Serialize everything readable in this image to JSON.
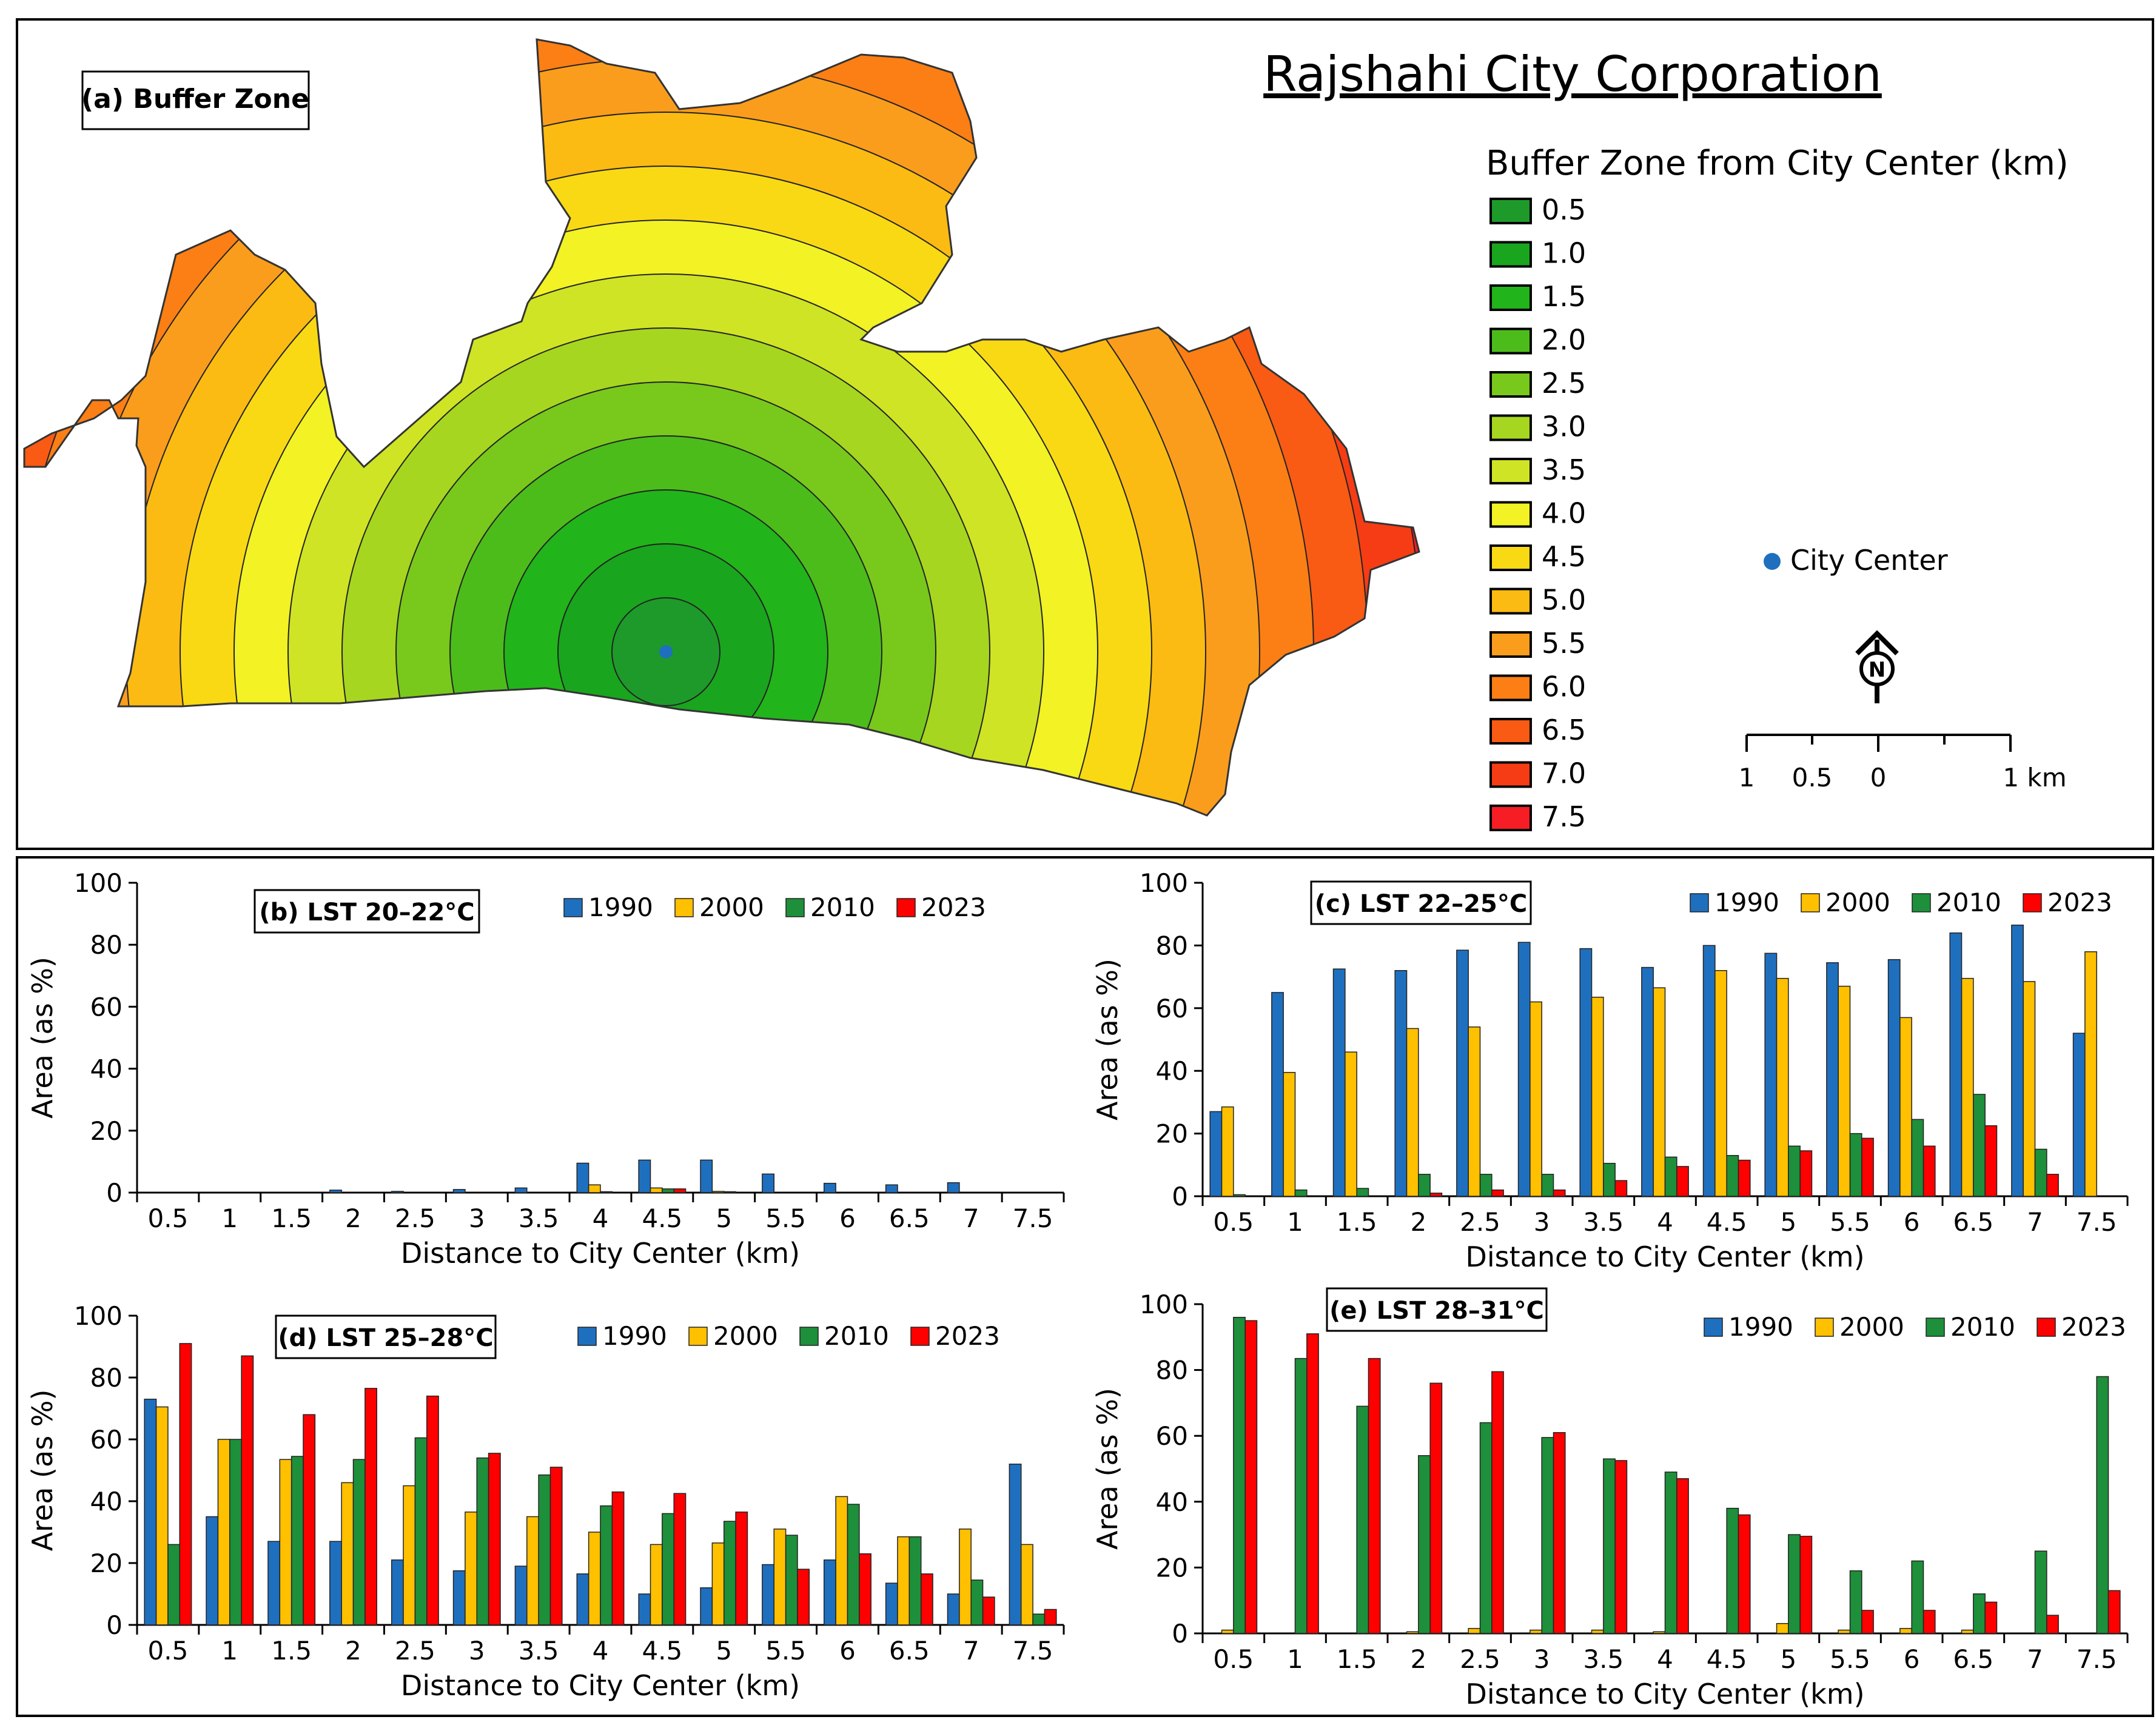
{
  "map_panel": {
    "panel_label": "(a) Buffer Zone",
    "title": "Rajshahi City Corporation",
    "legend_title": "Buffer Zone from City Center (km)",
    "legend_items": [
      {
        "label": "0.5",
        "color": "#1e9a2a"
      },
      {
        "label": "1.0",
        "color": "#19a51e"
      },
      {
        "label": "1.5",
        "color": "#22b41b"
      },
      {
        "label": "2.0",
        "color": "#4cbc1a"
      },
      {
        "label": "2.5",
        "color": "#78c91c"
      },
      {
        "label": "3.0",
        "color": "#a6d61f"
      },
      {
        "label": "3.5",
        "color": "#cfe424"
      },
      {
        "label": "4.0",
        "color": "#f2f224"
      },
      {
        "label": "4.5",
        "color": "#f9d914"
      },
      {
        "label": "5.0",
        "color": "#fbbb12"
      },
      {
        "label": "5.5",
        "color": "#fb9d1c"
      },
      {
        "label": "6.0",
        "color": "#fb7f14"
      },
      {
        "label": "6.5",
        "color": "#f95a14"
      },
      {
        "label": "7.0",
        "color": "#f63c14"
      },
      {
        "label": "7.5",
        "color": "#f61d24"
      }
    ],
    "city_center_label": "City Center",
    "city_center_color": "#1f6fbf",
    "north_label": "N",
    "scale_labels": [
      "1",
      "0.5",
      "0",
      "1 km"
    ]
  },
  "colors": {
    "1990": "#1f6fbf",
    "2000": "#ffc000",
    "2010": "#1e8f3a",
    "2023": "#ff0000"
  },
  "chart_data": [
    {
      "type": "bar",
      "panel": "b",
      "title": "(b) LST 20–22°C",
      "categories": [
        "0.5",
        "1",
        "1.5",
        "2",
        "2.5",
        "3",
        "3.5",
        "4",
        "4.5",
        "5",
        "5.5",
        "6",
        "6.5",
        "7",
        "7.5"
      ],
      "xlabel": "Distance to City Center (km)",
      "ylabel": "Area (as %)",
      "ylim": [
        0,
        100
      ],
      "yticks": [
        "0",
        "20",
        "40",
        "60",
        "80",
        "100"
      ],
      "legend": "top-right",
      "series": [
        {
          "name": "1990",
          "values": [
            0,
            0,
            0,
            0.8,
            0.4,
            1.0,
            1.5,
            9.5,
            10.5,
            10.5,
            6,
            3,
            2.5,
            3.2,
            0
          ]
        },
        {
          "name": "2000",
          "values": [
            0,
            0,
            0,
            0,
            0,
            0,
            0,
            2.5,
            1.5,
            0.4,
            0,
            0,
            0,
            0,
            0
          ]
        },
        {
          "name": "2010",
          "values": [
            0,
            0,
            0,
            0,
            0,
            0,
            0,
            0.3,
            1.2,
            0.3,
            0,
            0,
            0,
            0,
            0
          ]
        },
        {
          "name": "2023",
          "values": [
            0,
            0,
            0,
            0,
            0,
            0,
            0,
            0,
            1.2,
            0,
            0,
            0,
            0,
            0,
            0
          ]
        }
      ]
    },
    {
      "type": "bar",
      "panel": "c",
      "title": "(c) LST 22–25°C",
      "categories": [
        "0.5",
        "1",
        "1.5",
        "2",
        "2.5",
        "3",
        "3.5",
        "4",
        "4.5",
        "5",
        "5.5",
        "6",
        "6.5",
        "7",
        "7.5"
      ],
      "xlabel": "Distance to City Center (km)",
      "ylabel": "Area (as %)",
      "ylim": [
        0,
        100
      ],
      "yticks": [
        "0",
        "20",
        "40",
        "60",
        "80",
        "100"
      ],
      "legend": "top-right",
      "series": [
        {
          "name": "1990",
          "values": [
            27,
            65,
            72.5,
            72,
            78.5,
            81,
            79,
            73,
            80,
            77.5,
            74.5,
            75.5,
            84,
            86.5,
            52
          ]
        },
        {
          "name": "2000",
          "values": [
            28.5,
            39.5,
            46,
            53.5,
            54,
            62,
            63.5,
            66.5,
            72,
            69.5,
            67,
            57,
            69.5,
            68.5,
            78
          ]
        },
        {
          "name": "2010",
          "values": [
            0.5,
            2,
            2.5,
            7,
            7,
            7,
            10.5,
            12.5,
            13,
            16,
            20,
            24.5,
            32.5,
            15,
            0
          ]
        },
        {
          "name": "2023",
          "values": [
            0,
            0,
            0,
            1,
            2,
            2,
            5,
            9.5,
            11.5,
            14.5,
            18.5,
            16,
            22.5,
            7,
            0
          ]
        }
      ]
    },
    {
      "type": "bar",
      "panel": "d",
      "title": "(d) LST 25–28°C",
      "categories": [
        "0.5",
        "1",
        "1.5",
        "2",
        "2.5",
        "3",
        "3.5",
        "4",
        "4.5",
        "5",
        "5.5",
        "6",
        "6.5",
        "7",
        "7.5"
      ],
      "xlabel": "Distance to City Center (km)",
      "ylabel": "Area (as %)",
      "ylim": [
        0,
        100
      ],
      "yticks": [
        "0",
        "20",
        "40",
        "60",
        "80",
        "100"
      ],
      "legend": "top-right",
      "series": [
        {
          "name": "1990",
          "values": [
            73,
            35,
            27,
            27,
            21,
            17.5,
            19,
            16.5,
            10,
            12,
            19.5,
            21,
            13.5,
            10,
            52
          ]
        },
        {
          "name": "2000",
          "values": [
            70.5,
            60,
            53.5,
            46,
            45,
            36.5,
            35,
            30,
            26,
            26.5,
            31,
            41.5,
            28.5,
            31,
            26
          ]
        },
        {
          "name": "2010",
          "values": [
            26,
            60,
            54.5,
            53.5,
            60.5,
            54,
            48.5,
            38.5,
            36,
            33.5,
            29,
            39,
            28.5,
            14.5,
            3.5
          ]
        },
        {
          "name": "2023",
          "values": [
            91,
            87,
            68,
            76.5,
            74,
            55.5,
            51,
            43,
            42.5,
            36.5,
            18,
            23,
            16.5,
            9,
            5
          ]
        }
      ]
    },
    {
      "type": "bar",
      "panel": "e",
      "title": "(e) LST 28–31°C",
      "categories": [
        "0.5",
        "1",
        "1.5",
        "2",
        "2.5",
        "3",
        "3.5",
        "4",
        "4.5",
        "5",
        "5.5",
        "6",
        "6.5",
        "7",
        "7.5"
      ],
      "xlabel": "Distance to City Center (km)",
      "ylabel": "Area (as %)",
      "ylim": [
        0,
        100
      ],
      "yticks": [
        "0",
        "20",
        "40",
        "60",
        "80",
        "100"
      ],
      "legend": "top-right",
      "series": [
        {
          "name": "1990",
          "values": [
            0,
            0,
            0,
            0,
            0,
            0,
            0,
            0,
            0,
            0,
            0,
            0,
            0,
            0,
            0
          ]
        },
        {
          "name": "2000",
          "values": [
            1,
            0,
            0,
            0.5,
            1.5,
            1,
            1,
            0.5,
            0,
            3,
            1,
            1.5,
            1,
            0,
            0
          ]
        },
        {
          "name": "2010",
          "values": [
            96,
            83.5,
            69,
            54,
            64,
            59.5,
            53,
            49,
            38,
            30,
            19,
            22,
            12,
            25,
            78
          ]
        },
        {
          "name": "2023",
          "values": [
            95,
            91,
            83.5,
            76,
            79.5,
            61,
            52.5,
            47,
            36,
            29.5,
            7,
            7,
            9.5,
            5.5,
            13
          ]
        }
      ]
    }
  ]
}
